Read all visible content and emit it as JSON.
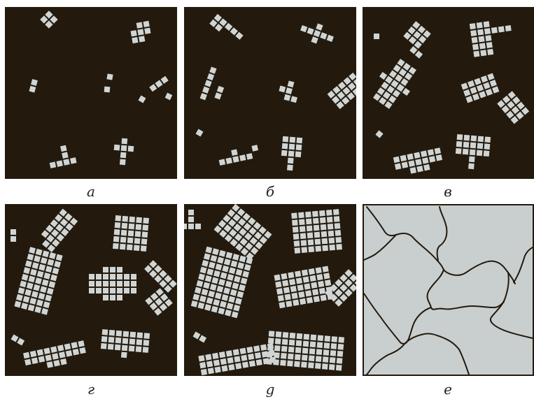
{
  "panels": [
    {
      "caption": "а"
    },
    {
      "caption": "б"
    },
    {
      "caption": "в"
    },
    {
      "caption": "г"
    },
    {
      "caption": "g"
    },
    {
      "caption": "е"
    }
  ],
  "colors": {
    "background": "#231a0d",
    "cell": "#d0d5d4",
    "grain": "#c9cfcf",
    "boundary": "#231a0d"
  }
}
